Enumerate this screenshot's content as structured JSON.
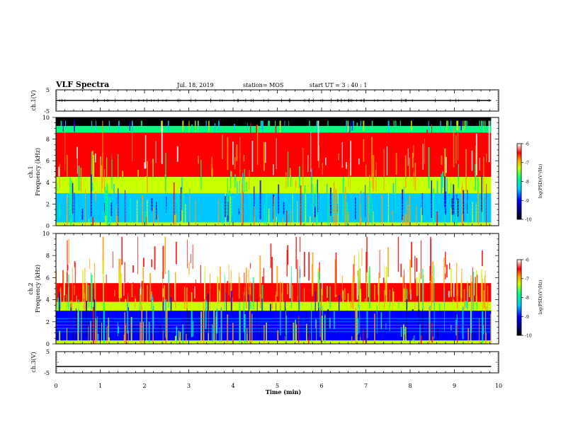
{
  "header": {
    "title": "VLF Spectra",
    "date": "Jul. 18, 2019",
    "station": "station= MOS",
    "start": "start UT =  3 : 40 : 1"
  },
  "chart_data": [
    {
      "type": "line",
      "name": "ch1-waveform",
      "ylabel": "ch.1(V)",
      "ylim": [
        -5,
        5
      ],
      "yticks": [
        "5",
        "-5"
      ],
      "x": [
        0,
        9.83
      ],
      "y": [
        0,
        0
      ]
    },
    {
      "type": "heatmap",
      "name": "ch1-spectrogram",
      "ylabel_line1": "ch.1",
      "ylabel_line2": "Frequency (kHz)",
      "ylim": [
        0,
        10
      ],
      "yticks": [
        "0",
        "2",
        "4",
        "6",
        "8",
        "10"
      ],
      "xlim": [
        0,
        10
      ],
      "data_end_min": 9.83,
      "bands": [
        {
          "f_low": 9.2,
          "f_high": 10.0,
          "log_psd": "no data"
        },
        {
          "f_low": 8.6,
          "f_high": 9.2,
          "log_psd": -8.5
        },
        {
          "f_low": 4.5,
          "f_high": 8.6,
          "log_psd": -6.5
        },
        {
          "f_low": 3.0,
          "f_high": 4.5,
          "log_psd": -7.7
        },
        {
          "f_low": 0.3,
          "f_high": 3.0,
          "log_psd": -9.0
        },
        {
          "f_low": 0.0,
          "f_high": 0.3,
          "log_psd": -7.5
        }
      ],
      "colorbar": {
        "label": "log(PSD)(V²/Hz)",
        "range": [
          -10,
          -6
        ],
        "ticks": [
          "-6",
          "-7",
          "-8",
          "-9",
          "-10"
        ]
      }
    },
    {
      "type": "heatmap",
      "name": "ch2-spectrogram",
      "ylabel_line1": "ch.2",
      "ylabel_line2": "Frequency (kHz)",
      "ylim": [
        0,
        10
      ],
      "yticks": [
        "0",
        "2",
        "4",
        "6",
        "8",
        "10"
      ],
      "xlim": [
        0,
        10
      ],
      "data_end_min": 9.83,
      "bands": [
        {
          "f_low": 5.5,
          "f_high": 10.0,
          "log_psd": -6.2
        },
        {
          "f_low": 3.8,
          "f_high": 5.5,
          "log_psd": -6.8
        },
        {
          "f_low": 3.0,
          "f_high": 3.8,
          "log_psd": -7.8
        },
        {
          "f_low": 0.3,
          "f_high": 3.0,
          "log_psd": -9.2
        },
        {
          "f_low": 0.0,
          "f_high": 0.3,
          "log_psd": -7.5
        }
      ],
      "colorbar": {
        "label": "log(PSD)(V²/Hz)",
        "range": [
          -10,
          -6
        ],
        "ticks": [
          "-6",
          "-7",
          "-8",
          "-9",
          "-10"
        ]
      }
    },
    {
      "type": "line",
      "name": "ch3-waveform",
      "ylabel": "ch.3(V)",
      "ylim": [
        -5,
        5
      ],
      "yticks": [
        "5",
        "-5"
      ],
      "x": [
        0,
        9.83
      ],
      "y": [
        -2.0,
        -2.0
      ]
    }
  ],
  "x_axis": {
    "label": "Time (min)",
    "ticks": [
      "0",
      "1",
      "2",
      "3",
      "4",
      "5",
      "6",
      "7",
      "8",
      "9",
      "10"
    ],
    "range": [
      0,
      10
    ]
  },
  "colors": {
    "colormap": [
      "#000080",
      "#0000ff",
      "#00c8ff",
      "#00ff80",
      "#c8ff00",
      "#ffa000",
      "#ff0000",
      "#ffffff"
    ],
    "no_data": "#000000"
  }
}
